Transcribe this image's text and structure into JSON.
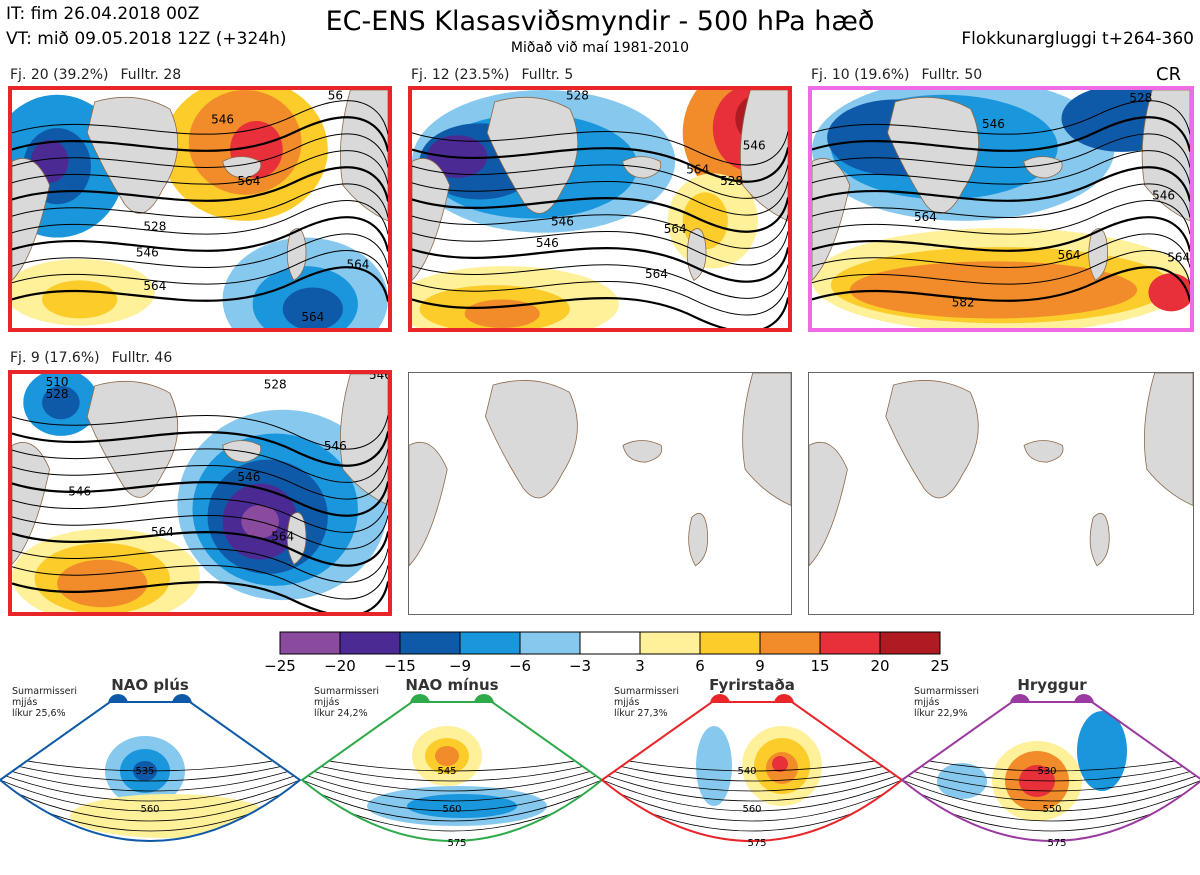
{
  "header": {
    "issue_time": "IT: fim 26.04.2018 00Z",
    "valid_time": "VT: mið 09.05.2018 12Z  (+324h)",
    "title": "EC-ENS Klasasviðsmyndir - 500 hPa hæð",
    "subtitle": "Miðað við maí 1981-2010",
    "window": "Flokkunargluggi t+264-360",
    "corner_tag": "CR"
  },
  "clusters": [
    {
      "label": "Fj. 20 (39.2%)",
      "member": "Fulltr. 28",
      "border": "#e8262a",
      "contours": [
        "546",
        "564",
        "564",
        "528",
        "546",
        "564",
        "564",
        "56"
      ]
    },
    {
      "label": "Fj. 12 (23.5%)",
      "member": "Fulltr. 5",
      "border": "#e8262a",
      "contours": [
        "528",
        "546",
        "546",
        "564",
        "564",
        "528",
        "546",
        "564"
      ]
    },
    {
      "label": "Fj. 10 (19.6%)",
      "member": "Fulltr. 50",
      "border": "#f06ce6",
      "contours": [
        "546",
        "528",
        "564",
        "546",
        "582",
        "564",
        "564"
      ]
    },
    {
      "label": "Fj. 9 (17.6%)",
      "member": "Fulltr. 46",
      "border": "#e8262a",
      "contours": [
        "510",
        "528",
        "546",
        "564",
        "528",
        "546",
        "564",
        "546",
        "546"
      ]
    }
  ],
  "colorbar": {
    "ticks": [
      "−25",
      "−20",
      "−15",
      "−9",
      "−6",
      "−3",
      "3",
      "6",
      "9",
      "15",
      "20",
      "25"
    ],
    "colors": [
      "#8a4a9e",
      "#4c2a94",
      "#0f5aa8",
      "#1a96dc",
      "#86c8ee",
      "#ffffff",
      "#fff09a",
      "#fbcc2a",
      "#f28c2a",
      "#e8303a",
      "#b01a22"
    ]
  },
  "regimes": [
    {
      "name": "NAO plús",
      "note": [
        "Sumarmisseri",
        "mjjás",
        "líkur 25,6%"
      ],
      "color": "#0f5aa8",
      "contours": [
        "535",
        "560"
      ]
    },
    {
      "name": "NAO mínus",
      "note": [
        "Sumarmisseri",
        "mjjás",
        "líkur 24,2%"
      ],
      "color": "#2eaa4a",
      "contours": [
        "545",
        "560",
        "575"
      ]
    },
    {
      "name": "Fyrirstaða",
      "note": [
        "Sumarmisseri",
        "mjjás",
        "líkur 27,3%"
      ],
      "color": "#e8262a",
      "contours": [
        "540",
        "560",
        "575"
      ]
    },
    {
      "name": "Hryggur",
      "note": [
        "Sumarmisseri",
        "mjjás",
        "líkur 22,9%"
      ],
      "color": "#9a3aa0",
      "contours": [
        "530",
        "550",
        "575"
      ]
    }
  ]
}
